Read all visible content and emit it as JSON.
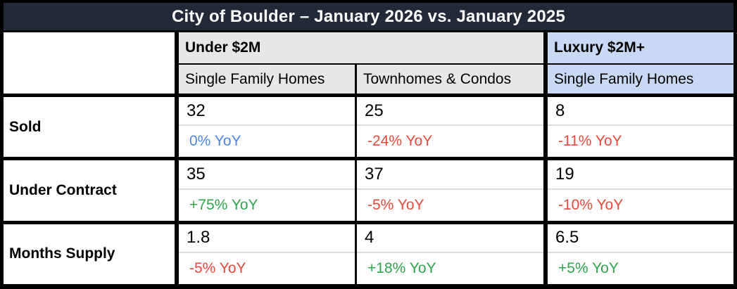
{
  "title": "City of Boulder – January 2026 vs. January 2025",
  "colors": {
    "title_bg": "#222938",
    "title_fg": "#ffffff",
    "header_gray_bg": "#E5E7E8",
    "header_blue_bg": "#C8D9F6",
    "cell_divider": "#DCDCDC",
    "positive": "#2FA44C",
    "negative": "#E74A3B",
    "neutral": "#4A86E8"
  },
  "header": {
    "groups": [
      {
        "label": "Under $2M"
      },
      {
        "label": "Luxury $2M+"
      }
    ],
    "columns": [
      "Single Family Homes",
      "Townhomes & Condos",
      "Single Family Homes"
    ]
  },
  "rows": [
    {
      "label": "Sold",
      "cells": [
        {
          "value": "32",
          "yoy": "0% YoY",
          "trend": "neutral"
        },
        {
          "value": "25",
          "yoy": "-24% YoY",
          "trend": "negative"
        },
        {
          "value": "8",
          "yoy": "-11% YoY",
          "trend": "negative"
        }
      ]
    },
    {
      "label": "Under Contract",
      "cells": [
        {
          "value": "35",
          "yoy": "+75% YoY",
          "trend": "positive"
        },
        {
          "value": "37",
          "yoy": "-5% YoY",
          "trend": "negative"
        },
        {
          "value": "19",
          "yoy": "-10% YoY",
          "trend": "negative"
        }
      ]
    },
    {
      "label": "Months Supply",
      "cells": [
        {
          "value": "1.8",
          "yoy": "-5% YoY",
          "trend": "negative"
        },
        {
          "value": "4",
          "yoy": "+18% YoY",
          "trend": "positive"
        },
        {
          "value": "6.5",
          "yoy": "+5% YoY",
          "trend": "positive"
        }
      ]
    }
  ],
  "chart_data": {
    "type": "table",
    "title": "City of Boulder – January 2026 vs. January 2025",
    "column_groups": [
      "Under $2M",
      "Under $2M",
      "Luxury $2M+"
    ],
    "columns": [
      "Single Family Homes",
      "Townhomes & Condos",
      "Single Family Homes"
    ],
    "row_labels": [
      "Sold",
      "Under Contract",
      "Months Supply"
    ],
    "values": [
      [
        32,
        25,
        8
      ],
      [
        35,
        37,
        19
      ],
      [
        1.8,
        4,
        6.5
      ]
    ],
    "yoy_change_pct": [
      [
        0,
        -24,
        -11
      ],
      [
        75,
        -5,
        -10
      ],
      [
        -5,
        18,
        5
      ]
    ]
  }
}
